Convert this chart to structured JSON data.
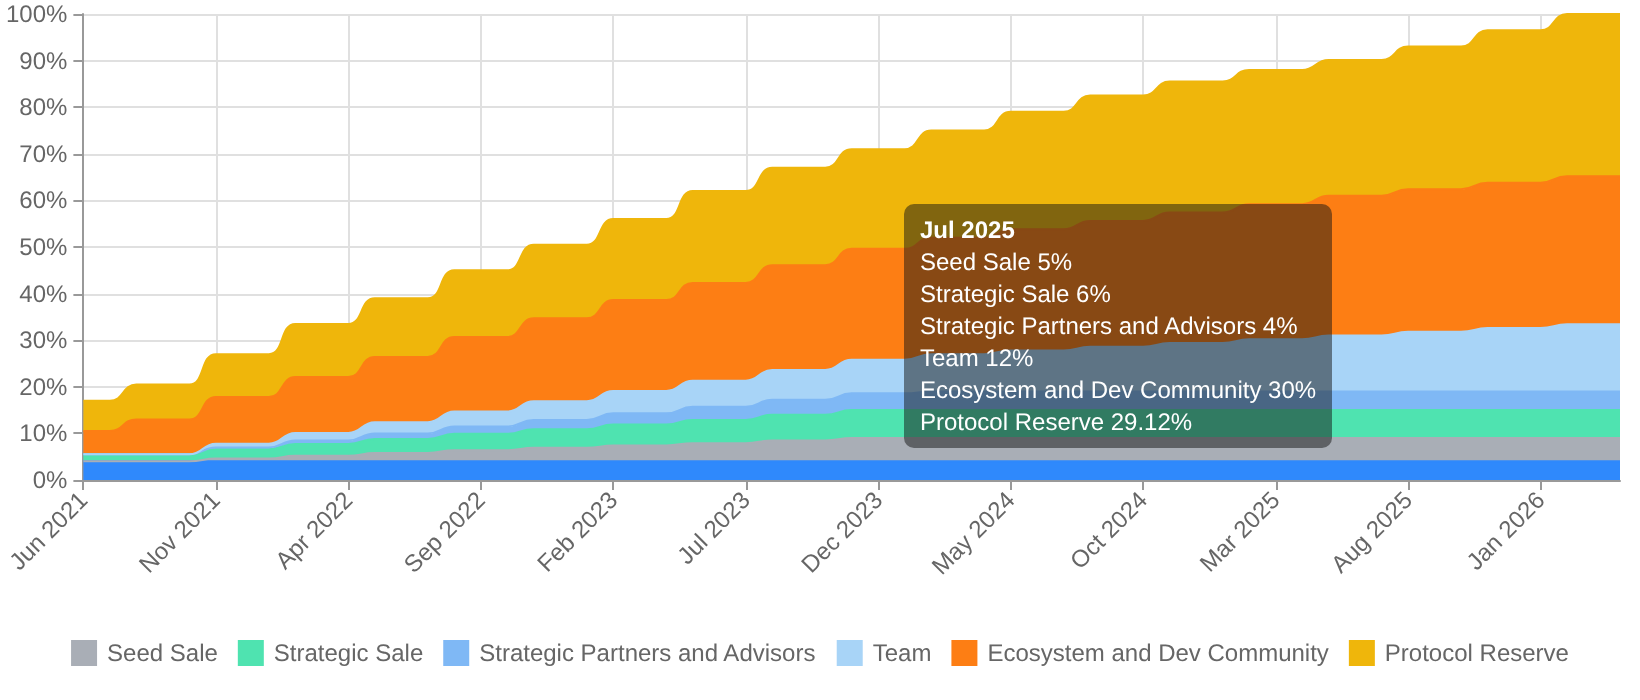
{
  "chart_data": {
    "type": "area",
    "stacked": true,
    "grid": true,
    "legend": "bottom",
    "categories": [
      "Jun 2021",
      null,
      null,
      null,
      null,
      "Nov 2021",
      null,
      null,
      null,
      null,
      "Apr 2022",
      null,
      null,
      null,
      null,
      "Sep 2022",
      null,
      null,
      null,
      null,
      "Feb 2023",
      null,
      null,
      null,
      null,
      "Jul 2023",
      null,
      null,
      null,
      null,
      "Dec 2023",
      null,
      null,
      null,
      null,
      "May 2024",
      null,
      null,
      null,
      null,
      "Oct 2024",
      null,
      null,
      null,
      null,
      "Mar 2025",
      null,
      null,
      null,
      null,
      "Aug 2025",
      null,
      null,
      null,
      null,
      "Jan 2026",
      null,
      null,
      null
    ],
    "ylim": [
      0,
      100
    ],
    "yticks": [
      {
        "value": 0,
        "label": "0%"
      },
      {
        "value": 10,
        "label": "10%"
      },
      {
        "value": 20,
        "label": "20%"
      },
      {
        "value": 30,
        "label": "30%"
      },
      {
        "value": 40,
        "label": "40%"
      },
      {
        "value": 50,
        "label": "50%"
      },
      {
        "value": 60,
        "label": "60%"
      },
      {
        "value": 70,
        "label": "70%"
      },
      {
        "value": 80,
        "label": "80%"
      },
      {
        "value": 90,
        "label": "90%"
      },
      {
        "value": 100,
        "label": "100%"
      }
    ],
    "series": [
      {
        "color": "#2f89fc",
        "values": [
          4,
          4,
          4,
          4,
          4,
          4,
          4,
          4,
          4,
          4,
          4,
          4,
          4,
          4,
          4,
          4,
          4,
          4,
          4,
          4,
          4,
          4,
          4,
          4,
          4,
          4,
          4,
          4,
          4,
          4,
          4,
          4,
          4,
          4,
          4,
          4,
          4,
          4,
          4,
          4,
          4,
          4,
          4,
          4,
          4,
          4,
          4,
          4,
          4,
          4,
          4,
          4,
          4,
          4,
          4,
          4,
          4,
          4,
          4
        ]
      },
      {
        "name": "Seed Sale",
        "color": "#a9aeb6",
        "values": [
          0,
          0,
          0,
          0,
          0,
          0.6,
          0.6,
          0.6,
          1.2,
          1.2,
          1.2,
          1.8,
          1.8,
          1.8,
          2.4,
          2.4,
          2.4,
          2.9,
          2.9,
          2.9,
          3.4,
          3.4,
          3.4,
          3.9,
          3.9,
          3.9,
          4.5,
          4.5,
          4.5,
          5,
          5,
          5,
          5,
          5,
          5,
          5,
          5,
          5,
          5,
          5,
          5,
          5,
          5,
          5,
          5,
          5,
          5,
          5,
          5,
          5,
          5,
          5,
          5,
          5,
          5,
          5,
          5,
          5,
          5
        ]
      },
      {
        "name": "Strategic Sale",
        "color": "#4fe3b0",
        "values": [
          1.5,
          1.5,
          1.5,
          1.5,
          1.5,
          2,
          2,
          2,
          2.5,
          2.5,
          2.5,
          3,
          3,
          3,
          3.5,
          3.5,
          3.5,
          4,
          4,
          4,
          4.5,
          4.5,
          4.5,
          5,
          5,
          5,
          5.5,
          5.5,
          5.5,
          6,
          6,
          6,
          6,
          6,
          6,
          6,
          6,
          6,
          6,
          6,
          6,
          6,
          6,
          6,
          6,
          6,
          6,
          6,
          6,
          6,
          6,
          6,
          6,
          6,
          6,
          6,
          6,
          6,
          6
        ]
      },
      {
        "name": "Strategic Partners and Advisors",
        "color": "#7fb8f5",
        "values": [
          0,
          0,
          0,
          0,
          0,
          0.4,
          0.4,
          0.4,
          0.8,
          0.8,
          0.8,
          1.2,
          1.2,
          1.2,
          1.6,
          1.6,
          1.6,
          2,
          2,
          2,
          2.4,
          2.4,
          2.4,
          2.8,
          2.8,
          2.8,
          3.2,
          3.2,
          3.2,
          3.6,
          3.6,
          3.6,
          4,
          4,
          4,
          4,
          4,
          4,
          4,
          4,
          4,
          4,
          4,
          4,
          4,
          4,
          4,
          4,
          4,
          4,
          4,
          4,
          4,
          4,
          4,
          4,
          4,
          4,
          4
        ]
      },
      {
        "name": "Team",
        "color": "#a8d4f7",
        "values": [
          0,
          0,
          0,
          0,
          0,
          0.8,
          0.8,
          0.8,
          1.6,
          1.6,
          1.6,
          2.4,
          2.4,
          2.4,
          3.2,
          3.2,
          3.2,
          4,
          4,
          4,
          4.8,
          4.8,
          4.8,
          5.6,
          5.6,
          5.6,
          6.4,
          6.4,
          6.4,
          7.2,
          7.2,
          7.2,
          8,
          8,
          8,
          8.8,
          8.8,
          8.8,
          9.6,
          9.6,
          9.6,
          10.4,
          10.4,
          10.4,
          11.2,
          11.2,
          11.2,
          12,
          12,
          12,
          12.8,
          12.8,
          12.8,
          13.6,
          13.6,
          13.6,
          14.4,
          14.4,
          14.4
        ]
      },
      {
        "name": "Ecosystem and Dev Community",
        "color": "#fd7e14",
        "values": [
          5,
          5,
          7.5,
          7.5,
          7.5,
          10,
          10,
          10,
          12,
          12,
          12,
          14,
          14,
          14,
          16,
          16,
          16,
          17.8,
          17.8,
          17.8,
          19.5,
          19.5,
          19.5,
          21,
          21,
          21,
          22.5,
          22.5,
          22.5,
          23.8,
          23.8,
          23.8,
          25,
          25,
          25,
          26,
          26,
          26,
          27,
          27,
          27,
          28,
          28,
          28,
          29,
          29,
          29,
          30,
          30,
          30,
          30.6,
          30.6,
          30.6,
          31.2,
          31.2,
          31.2,
          31.8,
          31.8,
          31.8
        ]
      },
      {
        "name": "Protocol Reserve",
        "color": "#efb60b",
        "values": [
          6.5,
          6.5,
          7.5,
          7.5,
          7.5,
          9.2,
          9.2,
          9.2,
          11.4,
          11.4,
          11.4,
          12.6,
          12.6,
          12.6,
          14.3,
          14.3,
          14.3,
          15.8,
          15.8,
          15.8,
          17.4,
          17.4,
          17.4,
          19.7,
          19.7,
          19.7,
          20.9,
          20.9,
          20.9,
          21.4,
          21.4,
          21.4,
          23,
          23,
          23,
          25.2,
          25.2,
          25.2,
          26.9,
          26.9,
          26.9,
          28.1,
          28.1,
          28.1,
          28.8,
          28.8,
          28.8,
          29.12,
          29.12,
          29.12,
          30.6,
          30.6,
          30.6,
          32.7,
          32.7,
          32.7,
          34.8,
          34.8,
          34.8
        ]
      }
    ],
    "annotations": [
      "Jul 2025",
      "Seed Sale 5%",
      "Strategic Sale 6%",
      "Strategic Partners and Advisors 4%",
      "Team 12%",
      "Ecosystem and Dev Community 30%",
      "Protocol Reserve 29.12%"
    ]
  }
}
